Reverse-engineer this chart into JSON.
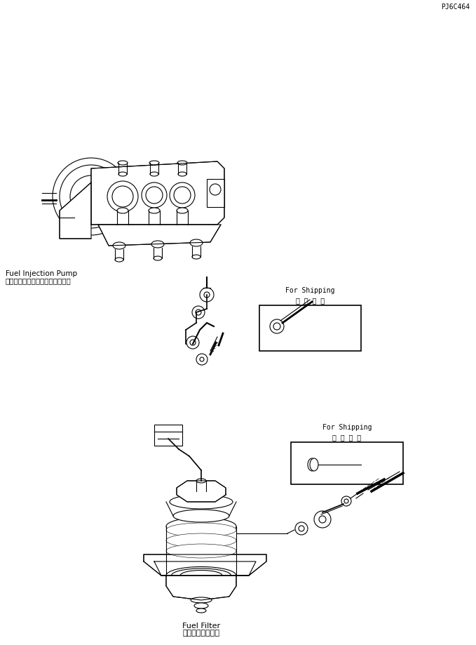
{
  "bg_color": "#ffffff",
  "line_color": "#000000",
  "fig_width": 6.79,
  "fig_height": 9.19,
  "dpi": 100,
  "label_fuel_filter_jp": "フェエルフィルタ",
  "label_fuel_filter_en": "Fuel Filter",
  "label_fuel_injection_jp": "フェエルインジェクションポンプ",
  "label_fuel_injection_en": "Fuel Injection Pump",
  "label_for_shipping_jp": "運 搞 部 品",
  "label_for_shipping_en": "For Shipping",
  "part_number": "PJ6C464"
}
